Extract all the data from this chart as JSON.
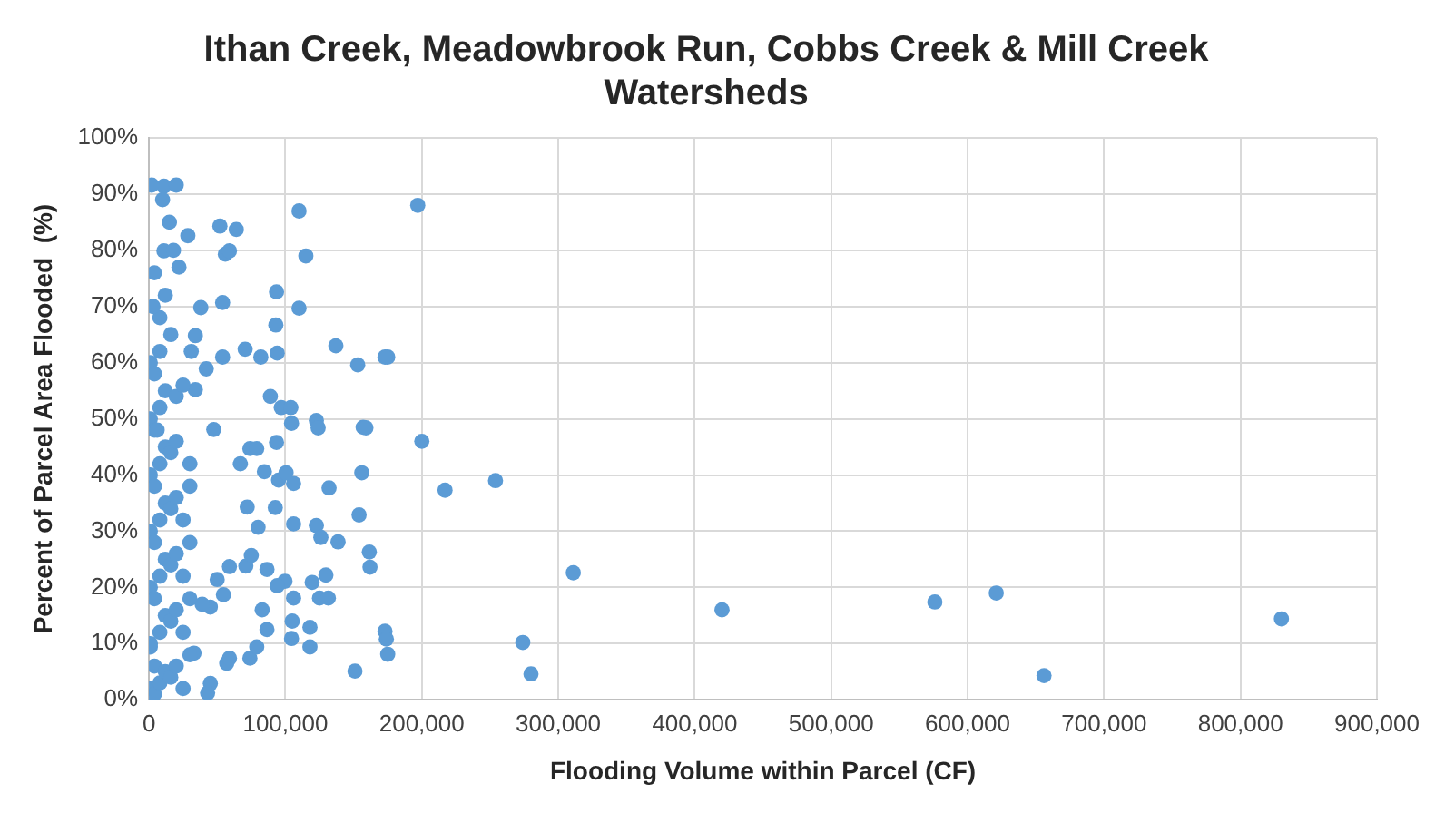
{
  "chart_data": {
    "type": "scatter",
    "title": "Ithan Creek, Meadowbrook Run, Cobbs Creek & Mill Creek Watersheds",
    "xlabel": "Flooding Volume within Parcel (CF)",
    "ylabel": "Percent of Parcel Area Flooded  (%)",
    "xlim": [
      0,
      900000
    ],
    "xticks": [
      {
        "value": 0,
        "label": "0"
      },
      {
        "value": 100000,
        "label": "100,000"
      },
      {
        "value": 200000,
        "label": "200,000"
      },
      {
        "value": 300000,
        "label": "300,000"
      },
      {
        "value": 400000,
        "label": "400,000"
      },
      {
        "value": 500000,
        "label": "500,000"
      },
      {
        "value": 600000,
        "label": "600,000"
      },
      {
        "value": 700000,
        "label": "700,000"
      },
      {
        "value": 800000,
        "label": "800,000"
      },
      {
        "value": 900000,
        "label": "900,000"
      }
    ],
    "ylim": [
      0,
      100
    ],
    "yticks": [
      {
        "value": 0,
        "label": "0%"
      },
      {
        "value": 10,
        "label": "10%"
      },
      {
        "value": 20,
        "label": "20%"
      },
      {
        "value": 30,
        "label": "30%"
      },
      {
        "value": 40,
        "label": "40%"
      },
      {
        "value": 50,
        "label": "50%"
      },
      {
        "value": 60,
        "label": "60%"
      },
      {
        "value": 70,
        "label": "70%"
      },
      {
        "value": 80,
        "label": "80%"
      },
      {
        "value": 90,
        "label": "90%"
      },
      {
        "value": 100,
        "label": "100%"
      }
    ],
    "grid": true,
    "legend": false,
    "marker": "circle",
    "series": [
      {
        "color": "#5b9bd5",
        "x": [
          311000,
          420000,
          576000,
          621000,
          656000,
          830000,
          280000,
          274000,
          197000,
          175000,
          153000,
          157000,
          200000,
          156000,
          217000,
          254000,
          154000,
          162000,
          173000,
          174000,
          175000,
          151000,
          52000,
          64000,
          110000,
          115000,
          93500,
          110000,
          93000,
          137000,
          173000,
          54000,
          28500,
          15000,
          11000,
          2000,
          20000,
          56000,
          59000,
          11000,
          38000,
          34000,
          54000,
          31000,
          70500,
          82000,
          94000,
          42000,
          34000,
          89000,
          97000,
          104000,
          104500,
          122700,
          124000,
          159000,
          93500,
          47500,
          74000,
          79000,
          67000,
          84600,
          95000,
          106000,
          132000,
          100500,
          72000,
          92600,
          106000,
          80000,
          122700,
          126000,
          138600,
          161500,
          59000,
          71000,
          75000,
          86500,
          99700,
          119600,
          129700,
          94000,
          106000,
          125000,
          131500,
          45000,
          50000,
          54600,
          83000,
          86500,
          104500,
          105000,
          118000,
          118000,
          74000,
          79000,
          57000,
          59000,
          45000,
          43000,
          33000,
          39000,
          1000,
          1000,
          1000,
          1000,
          1000,
          1000,
          1000,
          1000,
          4000,
          4000,
          4000,
          4000,
          4000,
          4000,
          4000,
          4000,
          8000,
          8000,
          8000,
          8000,
          8000,
          8000,
          8000,
          8000,
          12000,
          12000,
          12000,
          12000,
          12000,
          12000,
          12000,
          16000,
          16000,
          16000,
          16000,
          16000,
          16000,
          20000,
          20000,
          20000,
          20000,
          20000,
          20000,
          25000,
          25000,
          25000,
          25000,
          25000,
          30000,
          30000,
          30000,
          30000,
          30000,
          6000,
          10000,
          18000,
          22000,
          3000
        ],
        "values": [
          22.6,
          16,
          17.4,
          19,
          4.3,
          14.4,
          4.6,
          10.2,
          88,
          61,
          59.6,
          48.5,
          46,
          40.4,
          37.3,
          39,
          32.9,
          23.6,
          12.2,
          10.8,
          8.1,
          5.1,
          84.3,
          83.7,
          87,
          79,
          72.6,
          69.7,
          66.7,
          63,
          61,
          70.7,
          82.6,
          85,
          91.4,
          91.6,
          91.6,
          79.3,
          79.9,
          79.9,
          69.8,
          64.8,
          61,
          62,
          62.4,
          61,
          61.7,
          58.9,
          55.2,
          54,
          52,
          52,
          49.2,
          49.7,
          48.4,
          48.4,
          45.8,
          48.1,
          44.7,
          44.7,
          42,
          40.6,
          39.1,
          38.5,
          37.7,
          40.4,
          34.3,
          34.2,
          31.3,
          30.7,
          31,
          28.9,
          28.1,
          26.3,
          23.7,
          23.8,
          25.7,
          23.2,
          21.1,
          20.9,
          22.2,
          20.3,
          18.1,
          18.1,
          18.1,
          16.5,
          21.4,
          18.7,
          16,
          12.5,
          10.9,
          14,
          9.4,
          12.9,
          7.4,
          9.4,
          6.5,
          7.4,
          2.9,
          1.2,
          8.3,
          17,
          9.4,
          2,
          10,
          20,
          30,
          40,
          50,
          60,
          76,
          1,
          6,
          18,
          28,
          38,
          48,
          58,
          68,
          3,
          12,
          22,
          32,
          42,
          52,
          62,
          72,
          5,
          15,
          25,
          35,
          45,
          55,
          65,
          4,
          14,
          24,
          34,
          44,
          54,
          6,
          16,
          26,
          36,
          46,
          56,
          2,
          12,
          22,
          32,
          42,
          8,
          18,
          28,
          38,
          48,
          89,
          80,
          77,
          70
        ]
      }
    ]
  }
}
